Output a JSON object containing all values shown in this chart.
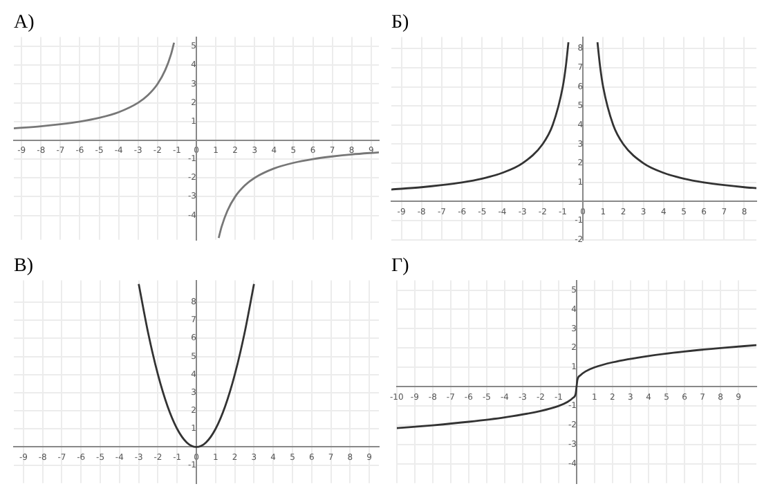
{
  "chart_data": [
    {
      "type": "line",
      "title": "А)",
      "grid": true,
      "marker": "none",
      "xlim": [
        -9.4,
        9.4
      ],
      "ylim": [
        -5.3,
        5.5
      ],
      "xticks": [
        -9,
        -8,
        -7,
        -6,
        -5,
        -4,
        -3,
        -2,
        -1,
        0,
        1,
        2,
        3,
        4,
        5,
        6,
        7,
        8,
        9
      ],
      "yticks": [
        -4,
        -3,
        -2,
        -1,
        1,
        2,
        3,
        4,
        5
      ],
      "series": [
        {
          "color": "#777777",
          "x": [
            -9.4,
            -8,
            -7,
            -6,
            -5,
            -4,
            -3,
            -2.5,
            -2,
            -1.6,
            -1.3,
            -1.15
          ],
          "values": [
            0.64,
            0.75,
            0.86,
            1,
            1.2,
            1.5,
            2,
            2.4,
            3,
            3.75,
            4.6,
            5.2
          ]
        },
        {
          "color": "#777777",
          "x": [
            1.15,
            1.3,
            1.6,
            2,
            2.5,
            3,
            4,
            5,
            6,
            7,
            8,
            9.4
          ],
          "values": [
            -5.2,
            -4.6,
            -3.75,
            -3,
            -2.4,
            -2,
            -1.5,
            -1.2,
            -1,
            -0.86,
            -0.75,
            -0.64
          ]
        }
      ]
    },
    {
      "type": "line",
      "title": "Б)",
      "grid": true,
      "marker": "none",
      "xlim": [
        -9.5,
        8.6
      ],
      "ylim": [
        -2,
        8.6
      ],
      "xticks": [
        -9,
        -8,
        -7,
        -6,
        -5,
        -4,
        -3,
        -2,
        -1,
        0,
        1,
        2,
        3,
        4,
        5,
        6,
        7,
        8
      ],
      "yticks": [
        -2,
        -1,
        1,
        2,
        3,
        4,
        5,
        6,
        7,
        8
      ],
      "series": [
        {
          "color": "#333333",
          "x": [
            -9.5,
            -8,
            -7,
            -6,
            -5,
            -4,
            -3,
            -2,
            -1.5,
            -1,
            -0.85,
            -0.72
          ],
          "values": [
            0.63,
            0.75,
            0.86,
            1,
            1.2,
            1.5,
            2,
            3,
            4,
            6,
            7.06,
            8.33
          ]
        },
        {
          "color": "#333333",
          "x": [
            0.72,
            0.85,
            1,
            1.5,
            2,
            3,
            4,
            5,
            6,
            7,
            8,
            8.6
          ],
          "values": [
            8.33,
            7.06,
            6,
            4,
            3,
            2,
            1.5,
            1.2,
            1,
            0.86,
            0.75,
            0.7
          ]
        }
      ]
    },
    {
      "type": "line",
      "title": "В)",
      "grid": true,
      "marker": "none",
      "xlim": [
        -9.5,
        9.5
      ],
      "ylim": [
        -2,
        9.2
      ],
      "xticks": [
        -9,
        -8,
        -7,
        -6,
        -5,
        -4,
        -3,
        -2,
        -1,
        0,
        1,
        2,
        3,
        4,
        5,
        6,
        7,
        8,
        9
      ],
      "yticks": [
        -1,
        1,
        2,
        3,
        4,
        5,
        6,
        7,
        8
      ],
      "series": [
        {
          "color": "#333333",
          "x": [
            -3,
            -2.5,
            -2,
            -1.5,
            -1,
            -0.5,
            0,
            0.5,
            1,
            1.5,
            2,
            2.5,
            3
          ],
          "values": [
            9,
            6.25,
            4,
            2.25,
            1,
            0.25,
            0,
            0.25,
            1,
            2.25,
            4,
            6.25,
            9
          ]
        }
      ]
    },
    {
      "type": "line",
      "title": "Г)",
      "grid": true,
      "marker": "none",
      "xlim": [
        -10,
        10
      ],
      "ylim": [
        -5,
        5.5
      ],
      "xticks": [
        -10,
        -9,
        -8,
        -7,
        -6,
        -5,
        -4,
        -3,
        -2,
        -1,
        1,
        2,
        3,
        4,
        5,
        6,
        7,
        8,
        9
      ],
      "yticks": [
        -4,
        -3,
        -2,
        -1,
        1,
        2,
        3,
        4,
        5
      ],
      "series": [
        {
          "color": "#333333",
          "x": [
            -10,
            -8,
            -6,
            -4,
            -2,
            -1,
            -0.5,
            -0.2,
            -0.05,
            0,
            0.05,
            0.2,
            0.5,
            1,
            2,
            4,
            6,
            8,
            10
          ],
          "values": [
            -2.15,
            -2,
            -1.82,
            -1.59,
            -1.26,
            -1,
            -0.79,
            -0.58,
            -0.37,
            0,
            0.37,
            0.58,
            0.79,
            1,
            1.26,
            1.59,
            1.82,
            2,
            2.15
          ]
        }
      ]
    }
  ]
}
